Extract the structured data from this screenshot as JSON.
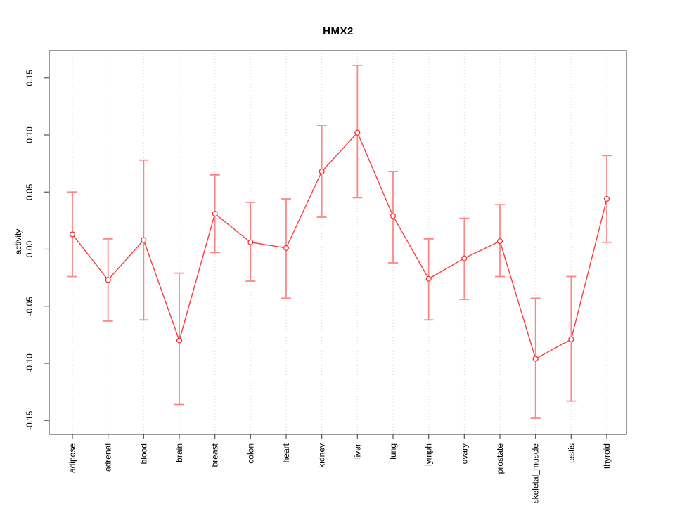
{
  "title": "HMX2",
  "ylabel": "activity",
  "chart_data": {
    "type": "line",
    "title": "HMX2",
    "xlabel": "",
    "ylabel": "activity",
    "legend": "none",
    "grid": "dotted vertical gridlines at each category; dotted horizontal line at y=0",
    "categories": [
      "adipose",
      "adrenal",
      "blood",
      "brain",
      "breast",
      "colon",
      "heart",
      "kidney",
      "liver",
      "lung",
      "lymph",
      "ovary",
      "prostate",
      "skeletal_muscle",
      "testis",
      "thyroid"
    ],
    "series": [
      {
        "name": "activity",
        "values": [
          0.013,
          -0.027,
          0.008,
          -0.08,
          0.031,
          0.006,
          0.001,
          0.068,
          0.102,
          0.029,
          -0.026,
          -0.008,
          0.007,
          -0.096,
          -0.079,
          0.044
        ],
        "error_upper": [
          0.05,
          0.009,
          0.078,
          -0.021,
          0.065,
          0.041,
          0.044,
          0.108,
          0.161,
          0.068,
          0.009,
          0.027,
          0.039,
          -0.043,
          -0.024,
          0.082
        ],
        "error_lower": [
          -0.024,
          -0.063,
          -0.062,
          -0.136,
          -0.003,
          -0.028,
          -0.043,
          0.028,
          0.045,
          -0.012,
          -0.062,
          -0.044,
          -0.024,
          -0.148,
          -0.133,
          0.006
        ]
      }
    ],
    "ytick_labels": [
      "0.15",
      "0.10",
      "0.05",
      "0.00",
      "-0.05",
      "-0.10",
      "-0.15"
    ],
    "yticks": [
      0.15,
      0.1,
      0.05,
      0.0,
      -0.05,
      -0.1,
      -0.15
    ],
    "ylim": [
      -0.158,
      0.174
    ],
    "colors": {
      "point": "#ff2b2b",
      "line": "#ff3b3b",
      "error_bar": "#ff8585",
      "gridline": "#d9d9d9",
      "axis": "#555555",
      "text": "#000000",
      "background": "#ffffff"
    }
  }
}
